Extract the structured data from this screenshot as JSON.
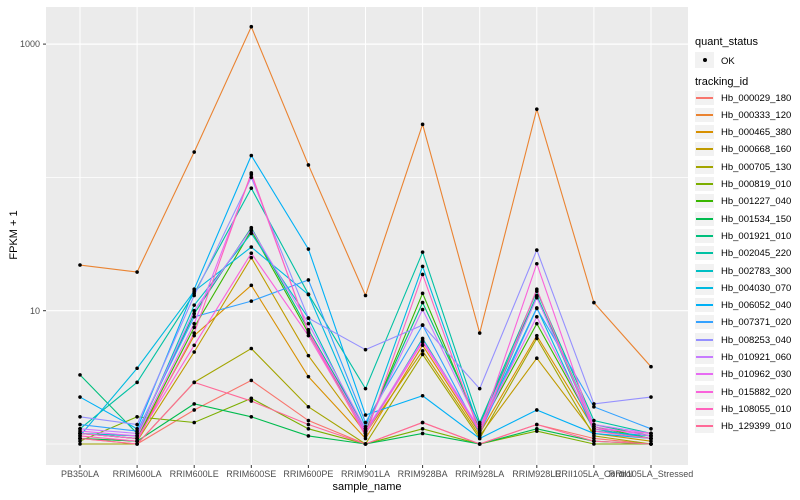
{
  "figure": {
    "background": "#FFFFFF",
    "panel_background": "#EBEBEB",
    "gridline_color": "#FFFFFF",
    "tick_mark_color": "#333333",
    "axis_text_color": "#4D4D4D",
    "point_color": "#000000",
    "legend_key_background": "#F2F2F2"
  },
  "legend": {
    "quant_status": {
      "title": "quant_status",
      "items": [
        {
          "label": "OK",
          "marker": "black-point"
        }
      ]
    },
    "tracking_id": {
      "title": "tracking_id"
    }
  },
  "chart_data": {
    "type": "line",
    "title": "",
    "xlabel": "sample_name",
    "ylabel": "FPKM + 1",
    "y_scale": "log10",
    "ylim": [
      0.95,
      1400
    ],
    "y_axis_ticks": [
      {
        "label": "1000",
        "value": 1000
      },
      {
        "label": "10",
        "value": 10
      }
    ],
    "y_major_gridlines": [
      10,
      1000
    ],
    "y_minor_gridlines": [
      1,
      100
    ],
    "grid": true,
    "legend_position": "right",
    "point_marker": "black-dot-all-points",
    "categories": [
      "PB350LA",
      "RRIM600LA",
      "RRIM600LE",
      "RRIM600SE",
      "RRIM600PE",
      "RRIM901LA",
      "RRIM928BA",
      "RRIM928LA",
      "RRIM928LE",
      "RRII105LA_Control",
      "RRII105LA_Stressed"
    ],
    "series": [
      {
        "name": "Hb_000029_180",
        "color": "#F8766D",
        "quant_status": "OK",
        "values": [
          1.1,
          1.0,
          1.8,
          3.0,
          1.5,
          1.0,
          1.45,
          1.0,
          1.4,
          1.1,
          1.0
        ]
      },
      {
        "name": "Hb_000333_120",
        "color": "#EA8331",
        "quant_status": "OK",
        "values": [
          22,
          19.5,
          155,
          1350,
          124,
          13,
          250,
          6.8,
          325,
          11.5,
          3.8
        ]
      },
      {
        "name": "Hb_000465_380",
        "color": "#D89000",
        "quant_status": "OK",
        "values": [
          1.2,
          1.1,
          6.5,
          15.5,
          3.2,
          1.1,
          5.5,
          1.2,
          6.5,
          1.3,
          1.1
        ]
      },
      {
        "name": "Hb_000668_160",
        "color": "#C09B00",
        "quant_status": "OK",
        "values": [
          1.1,
          1.05,
          4.9,
          25,
          4.6,
          1.2,
          5.0,
          1.15,
          4.4,
          1.2,
          1.05
        ]
      },
      {
        "name": "Hb_000705_130",
        "color": "#A3A500",
        "quant_status": "OK",
        "values": [
          1.0,
          1.0,
          2.9,
          5.2,
          1.9,
          1.0,
          4.7,
          1.1,
          6.2,
          1.15,
          1.0
        ]
      },
      {
        "name": "Hb_000819_010",
        "color": "#7CAE00",
        "quant_status": "OK",
        "values": [
          1.05,
          1.6,
          1.45,
          2.2,
          1.3,
          1.0,
          1.3,
          1.0,
          1.25,
          1.0,
          1.0
        ]
      },
      {
        "name": "Hb_001227_040",
        "color": "#39B600",
        "quant_status": "OK",
        "values": [
          1.2,
          1.1,
          7.5,
          40,
          6.8,
          1.25,
          13.5,
          1.3,
          8.0,
          1.35,
          1.1
        ]
      },
      {
        "name": "Hb_001534_150",
        "color": "#00BB4E",
        "quant_status": "OK",
        "values": [
          1.1,
          1.05,
          2.0,
          1.6,
          1.15,
          1.0,
          1.2,
          1.0,
          1.3,
          1.05,
          1.0
        ]
      },
      {
        "name": "Hb_001921_010",
        "color": "#00BF7D",
        "quant_status": "OK",
        "values": [
          3.3,
          1.2,
          9.5,
          42,
          7.2,
          1.3,
          11.5,
          1.4,
          13,
          1.4,
          1.15
        ]
      },
      {
        "name": "Hb_002045_220",
        "color": "#00C1A3",
        "quant_status": "OK",
        "values": [
          1.3,
          2.9,
          13.5,
          83,
          13.3,
          2.6,
          27.5,
          1.45,
          14,
          1.5,
          1.2
        ]
      },
      {
        "name": "Hb_002783_300",
        "color": "#00BFC4",
        "quant_status": "OK",
        "values": [
          1.2,
          1.15,
          11,
          38,
          8.8,
          1.2,
          6.2,
          1.25,
          12.8,
          1.3,
          1.1
        ]
      },
      {
        "name": "Hb_004030_070",
        "color": "#00BAE0",
        "quant_status": "OK",
        "values": [
          1.15,
          3.7,
          14,
          30,
          13.2,
          1.35,
          21.5,
          1.3,
          10.5,
          1.25,
          1.15
        ]
      },
      {
        "name": "Hb_006052_040",
        "color": "#00B0F6",
        "quant_status": "OK",
        "values": [
          2.25,
          1.3,
          14.5,
          146,
          29,
          1.65,
          2.3,
          1.1,
          1.8,
          1.2,
          1.1
        ]
      },
      {
        "name": "Hb_007371_020",
        "color": "#35A2FF",
        "quant_status": "OK",
        "values": [
          1.4,
          1.25,
          9.0,
          11.8,
          17,
          1.45,
          7.8,
          1.2,
          10.4,
          1.9,
          1.3
        ]
      },
      {
        "name": "Hb_008253_040",
        "color": "#9590FF",
        "quant_status": "OK",
        "values": [
          1.6,
          1.4,
          13,
          100,
          8.8,
          5.1,
          7.8,
          2.6,
          28.5,
          2.0,
          2.25
        ]
      },
      {
        "name": "Hb_010921_060",
        "color": "#C77CFF",
        "quant_status": "OK",
        "values": [
          1.3,
          1.2,
          10,
          41,
          8.0,
          1.3,
          10.2,
          1.35,
          12.5,
          1.4,
          1.2
        ]
      },
      {
        "name": "Hb_010962_030",
        "color": "#E76BF3",
        "quant_status": "OK",
        "values": [
          1.25,
          1.15,
          8.0,
          105,
          7.0,
          1.25,
          6.0,
          1.3,
          9.0,
          1.35,
          1.15
        ]
      },
      {
        "name": "Hb_015882_020",
        "color": "#FA62DB",
        "quant_status": "OK",
        "values": [
          1.2,
          1.1,
          5.5,
          27,
          6.5,
          1.2,
          5.8,
          1.25,
          22.5,
          1.3,
          1.2
        ]
      },
      {
        "name": "Hb_108055_010",
        "color": "#FF62BC",
        "quant_status": "OK",
        "values": [
          1.15,
          1.05,
          6.8,
          108,
          6.9,
          1.15,
          18.7,
          1.2,
          14.5,
          1.25,
          1.1
        ]
      },
      {
        "name": "Hb_129399_010",
        "color": "#FF6A98",
        "quant_status": "OK",
        "values": [
          1.1,
          1.0,
          2.9,
          2.1,
          1.4,
          1.0,
          1.45,
          1.0,
          1.4,
          1.05,
          1.0
        ]
      }
    ]
  }
}
